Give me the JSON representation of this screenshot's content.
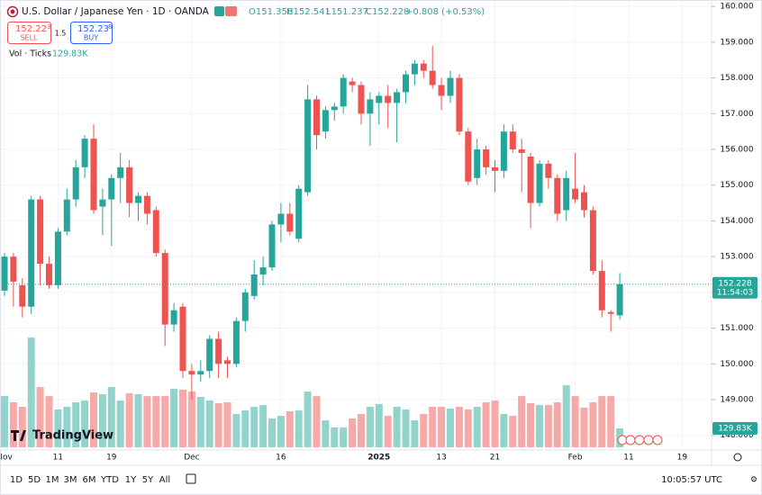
{
  "header": {
    "symbol": "U.S. Dollar / Japanese Yen · 1D · OANDA",
    "open": "O151.358",
    "high": "H152.541",
    "low": "L151.237",
    "close": "C152.228",
    "change": "+0.808 (+0.53%)"
  },
  "trade": {
    "sell_main": "152.22",
    "sell_last": "3",
    "sell": "SELL",
    "spread": "1.5",
    "buy_main": "152.23",
    "buy_last": "8",
    "buy": "BUY"
  },
  "volume_legend": {
    "label": "Vol · Ticks",
    "value": "129.83K"
  },
  "watermark": "TradingView",
  "price_tag": {
    "price": "152.228",
    "countdown": "11:54:03"
  },
  "volume_tag": "129.83K",
  "toolbar": {
    "ranges": [
      "1D",
      "5D",
      "1M",
      "3M",
      "6M",
      "YTD",
      "1Y",
      "5Y",
      "All"
    ],
    "clock": "10:05:57 UTC"
  },
  "chart_data": {
    "type": "candlestick",
    "grid": true,
    "up_color": "#26a69a",
    "down_color": "#ef5350",
    "volume_up_color": "#92d3cc",
    "volume_down_color": "#f7a9a7",
    "ylim": [
      147.59,
      160.18
    ],
    "yticks": [
      {
        "value": 160,
        "label": "160.000"
      },
      {
        "value": 159,
        "label": "159.000"
      },
      {
        "value": 158,
        "label": "158.000"
      },
      {
        "value": 157,
        "label": "157.000"
      },
      {
        "value": 156,
        "label": "156.000"
      },
      {
        "value": 155,
        "label": "155.000"
      },
      {
        "value": 154,
        "label": "154.000"
      },
      {
        "value": 153,
        "label": "153.000"
      },
      {
        "value": 152,
        "label": "152.000"
      },
      {
        "value": 151,
        "label": "151.000"
      },
      {
        "value": 150,
        "label": "150.000"
      },
      {
        "value": 149,
        "label": "149.000"
      },
      {
        "value": 148,
        "label": "148.000"
      }
    ],
    "categories": [
      "Nov",
      null,
      null,
      null,
      null,
      null,
      "11",
      null,
      null,
      null,
      null,
      null,
      "19",
      null,
      null,
      null,
      null,
      null,
      null,
      null,
      null,
      "Dec",
      null,
      null,
      null,
      null,
      null,
      null,
      null,
      null,
      null,
      "16",
      null,
      null,
      null,
      null,
      null,
      null,
      null,
      null,
      null,
      null,
      "2025",
      null,
      null,
      null,
      null,
      null,
      null,
      "13",
      null,
      null,
      null,
      null,
      null,
      "21",
      null,
      null,
      null,
      null,
      null,
      null,
      null,
      null,
      "Feb",
      null,
      null,
      null,
      null,
      null,
      "11",
      null,
      null,
      null,
      null,
      null,
      "19"
    ],
    "open": [
      152.05,
      153.0,
      152.2,
      151.6,
      154.6,
      152.8,
      152.2,
      153.7,
      154.6,
      155.5,
      156.3,
      154.4,
      154.6,
      155.2,
      155.5,
      154.5,
      154.7,
      154.3,
      153.1,
      151.1,
      151.6,
      149.8,
      149.7,
      149.8,
      150.7,
      150.1,
      150.0,
      151.2,
      151.9,
      152.5,
      152.7,
      153.9,
      154.2,
      153.5,
      154.8,
      157.4,
      156.5,
      157.1,
      157.2,
      157.9,
      157.8,
      157.0,
      157.3,
      157.5,
      157.3,
      157.6,
      158.1,
      158.4,
      158.2,
      157.8,
      157.5,
      158.0,
      156.5,
      155.2,
      156.0,
      155.5,
      155.4,
      156.5,
      156.0,
      155.8,
      154.5,
      155.6,
      155.2,
      154.3,
      154.9,
      154.8,
      154.3,
      152.6,
      151.45,
      151.358,
      null,
      null,
      null,
      null,
      null,
      null,
      null
    ],
    "high": [
      153.1,
      153.1,
      152.4,
      154.7,
      154.7,
      153.0,
      153.8,
      154.9,
      155.7,
      156.4,
      156.7,
      154.9,
      155.3,
      155.9,
      155.7,
      154.8,
      154.8,
      154.4,
      153.2,
      151.7,
      151.7,
      150.0,
      150.1,
      150.8,
      150.9,
      150.2,
      151.3,
      152.1,
      152.9,
      153.0,
      154.0,
      154.5,
      154.5,
      155.0,
      157.8,
      157.5,
      157.2,
      157.3,
      158.1,
      158.0,
      157.9,
      157.6,
      157.6,
      157.8,
      157.7,
      158.2,
      158.5,
      158.5,
      158.9,
      158.0,
      158.2,
      158.1,
      156.6,
      156.3,
      156.1,
      155.7,
      156.7,
      156.7,
      156.3,
      155.9,
      155.7,
      155.7,
      155.3,
      155.4,
      155.9,
      155.0,
      154.4,
      152.9,
      151.5,
      152.541,
      null,
      null,
      null,
      null,
      null,
      null,
      null
    ],
    "low": [
      151.9,
      151.6,
      151.3,
      151.4,
      152.2,
      152.1,
      152.1,
      153.6,
      154.4,
      155.2,
      154.2,
      153.6,
      153.3,
      154.5,
      154.1,
      154.0,
      153.9,
      153.0,
      150.5,
      150.9,
      149.6,
      149.0,
      149.5,
      149.6,
      149.6,
      149.6,
      149.9,
      150.9,
      151.8,
      152.2,
      152.6,
      153.4,
      153.6,
      153.4,
      154.7,
      156.0,
      156.3,
      156.8,
      157.0,
      157.6,
      156.7,
      156.1,
      156.7,
      156.6,
      156.2,
      157.3,
      157.8,
      158.0,
      157.7,
      157.1,
      157.3,
      156.4,
      155.0,
      155.0,
      155.3,
      154.8,
      155.2,
      155.9,
      154.8,
      153.8,
      154.4,
      154.9,
      154.0,
      154.0,
      154.5,
      154.1,
      152.5,
      151.3,
      150.9,
      151.237,
      null,
      null,
      null,
      null,
      null,
      null,
      null
    ],
    "close": [
      153.0,
      152.3,
      151.6,
      154.6,
      152.8,
      152.2,
      153.7,
      154.6,
      155.5,
      156.3,
      154.3,
      154.6,
      155.2,
      155.5,
      154.5,
      154.7,
      154.2,
      153.1,
      151.1,
      151.5,
      149.8,
      149.7,
      149.8,
      150.7,
      150.0,
      150.0,
      151.2,
      152.0,
      152.5,
      152.7,
      153.9,
      154.2,
      153.7,
      154.9,
      157.4,
      156.4,
      157.1,
      157.2,
      158.0,
      157.8,
      157.0,
      157.4,
      157.5,
      157.3,
      157.6,
      158.1,
      158.4,
      158.2,
      157.8,
      157.5,
      158.0,
      156.5,
      155.1,
      156.0,
      155.5,
      155.4,
      156.5,
      156.0,
      155.9,
      154.5,
      155.6,
      155.2,
      154.2,
      155.2,
      154.6,
      154.3,
      152.6,
      151.5,
      151.4,
      152.228,
      null,
      null,
      null,
      null,
      null,
      null,
      null
    ],
    "volume": [
      352,
      309,
      278,
      754,
      414,
      352,
      260,
      278,
      309,
      321,
      377,
      365,
      414,
      321,
      371,
      365,
      352,
      352,
      352,
      402,
      396,
      383,
      346,
      321,
      303,
      309,
      229,
      253,
      278,
      290,
      198,
      216,
      247,
      253,
      383,
      352,
      185,
      136,
      136,
      198,
      229,
      278,
      297,
      216,
      278,
      260,
      185,
      229,
      278,
      278,
      266,
      278,
      260,
      278,
      309,
      321,
      229,
      216,
      352,
      303,
      290,
      290,
      309,
      426,
      352,
      272,
      309,
      352,
      352,
      129.83,
      null,
      null,
      null,
      null,
      null,
      null,
      null
    ]
  }
}
